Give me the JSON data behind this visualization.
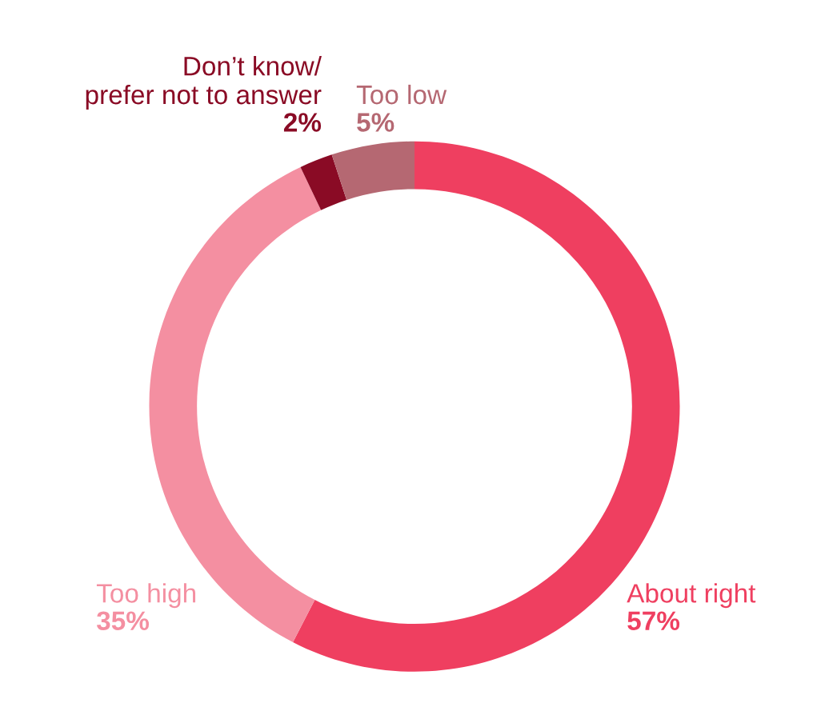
{
  "chart_data": {
    "type": "donut",
    "categories": [
      "About right",
      "Too high",
      "Don’t know/\nprefer not to answer",
      "Too low"
    ],
    "values": [
      57,
      35,
      2,
      5
    ],
    "colors": [
      "#ef3f60",
      "#f48fa1",
      "#8a0b25",
      "#b56872"
    ],
    "value_labels": [
      "57%",
      "35%",
      "2%",
      "5%"
    ]
  }
}
